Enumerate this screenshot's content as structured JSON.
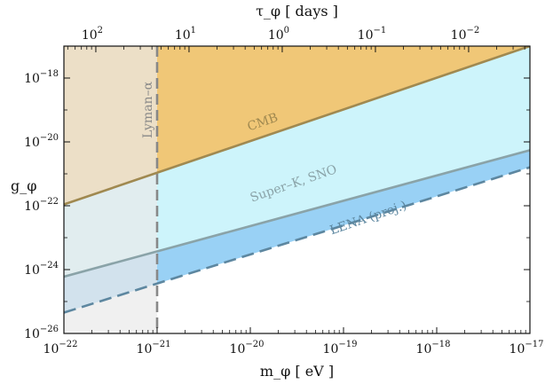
{
  "chart_data": {
    "type": "area",
    "x_scale": "log",
    "y_scale": "log",
    "xlim": [
      1e-22,
      1e-17
    ],
    "ylim": [
      1e-26,
      1e-17
    ],
    "xlabel": "m_φ [ eV ]",
    "ylabel": "g_φ",
    "top_xlabel": "τ_φ [ days ]",
    "grid": false,
    "x_ticks": [
      {
        "value": 1e-22,
        "base": "10",
        "exp": "−22"
      },
      {
        "value": 1e-21,
        "base": "10",
        "exp": "−21"
      },
      {
        "value": 1e-20,
        "base": "10",
        "exp": "−20"
      },
      {
        "value": 1e-19,
        "base": "10",
        "exp": "−19"
      },
      {
        "value": 1e-18,
        "base": "10",
        "exp": "−18"
      },
      {
        "value": 1e-17,
        "base": "10",
        "exp": "−17"
      }
    ],
    "y_ticks": [
      {
        "value": 1e-26,
        "base": "10",
        "exp": "−26"
      },
      {
        "value": 1e-24,
        "base": "10",
        "exp": "−24"
      },
      {
        "value": 1e-22,
        "base": "10",
        "exp": "−22"
      },
      {
        "value": 1e-20,
        "base": "10",
        "exp": "−20"
      },
      {
        "value": 1e-18,
        "base": "10",
        "exp": "−18"
      }
    ],
    "top_ticks": [
      {
        "mass": 2.2e-22,
        "base": "10",
        "exp": "2"
      },
      {
        "mass": 2.2e-21,
        "base": "10",
        "exp": "1"
      },
      {
        "mass": 2.2e-20,
        "base": "10",
        "exp": "0"
      },
      {
        "mass": 2.2e-19,
        "base": "10",
        "exp": "−1"
      },
      {
        "mass": 2.2e-18,
        "base": "10",
        "exp": "−2"
      }
    ],
    "series": [
      {
        "name": "CMB",
        "x": [
          1e-22,
          1e-17
        ],
        "y": [
          1.1e-22,
          1e-17
        ],
        "line_color": "#a08950",
        "fill_color": "#f0c777",
        "line_style": "solid",
        "label_at": [
          1.4e-20,
          3.2e-20
        ],
        "label_angle": -19
      },
      {
        "name": "Super–K, SNO",
        "x": [
          1e-22,
          1e-17
        ],
        "y": [
          6e-25,
          5.5e-21
        ],
        "line_color": "#8aa3a8",
        "fill_color": "#cdf4fb",
        "line_style": "solid",
        "label_at": [
          3e-20,
          3.8e-22
        ],
        "label_angle": -19
      },
      {
        "name": "LENA (proj.)",
        "x": [
          1e-22,
          1e-17
        ],
        "y": [
          4.5e-26,
          1.6e-21
        ],
        "line_color": "#5d87a0",
        "fill_color": "#99d1f5",
        "line_style": "dashed",
        "label_at": [
          1.9e-19,
          3.2e-23
        ],
        "label_angle": -19
      }
    ],
    "vertical_lines": [
      {
        "name": "Lyman–α",
        "x": 1e-21,
        "color": "#888888",
        "line_style": "dashed",
        "shade_left_color": "#e9e9e9",
        "shade_left_opacity": 0.7,
        "label_y": 1e-19
      }
    ]
  }
}
